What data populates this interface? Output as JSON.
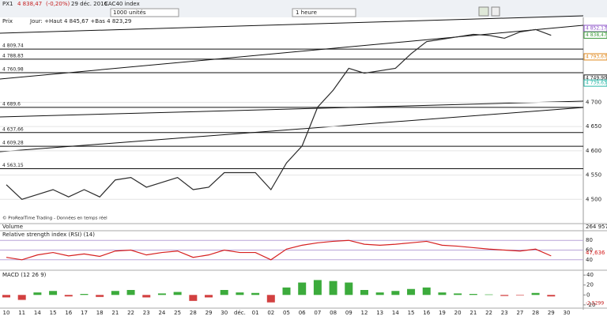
{
  "toolbar": {
    "instrument": "PX1",
    "last": "4 838,47",
    "change": "(-0,20%)",
    "date": "29 déc. 2016",
    "name": "CAC40 index",
    "units": "1000 unités",
    "period": "1 heure"
  },
  "price_panel": {
    "type": "line",
    "label": "Prix",
    "info": "Jour: +Haut 4 845,67 +Bas 4 823,29",
    "credit": "© ProRealTime Trading - Données en temps réel",
    "color": "#2b2b2b",
    "ylim": [
      4450,
      4875
    ],
    "yticks": [
      {
        "value": 4700,
        "label": "4 700"
      },
      {
        "value": 4650,
        "label": "4 650"
      },
      {
        "value": 4600,
        "label": "4 600"
      },
      {
        "value": 4550,
        "label": "4 550"
      },
      {
        "value": 4500,
        "label": "4 500"
      }
    ],
    "price_labels": [
      {
        "value": 4852.17,
        "label": "4 852,17",
        "color": "#8a4fc8"
      },
      {
        "value": 4838.47,
        "label": "4 838,47",
        "color": "#3c9a3c"
      },
      {
        "value": 4793.67,
        "label": "4 793,67",
        "color": "#e08a1e"
      },
      {
        "value": 4749.9,
        "label": "4 749,90",
        "color": "#222222"
      },
      {
        "value": 4739.63,
        "label": "4 739,63",
        "color": "#2ab8a8"
      }
    ],
    "levels": [
      {
        "value": 4809.74,
        "label": "4 809,74"
      },
      {
        "value": 4788.83,
        "label": "4 788,83"
      },
      {
        "value": 4760.98,
        "label": "4 760,98"
      },
      {
        "value": 4689.6,
        "label": "4 689,6"
      },
      {
        "value": 4637.66,
        "label": "4 637,66"
      },
      {
        "value": 4609.28,
        "label": "4 609,28"
      },
      {
        "value": 4563.15,
        "label": "4 563,15"
      }
    ],
    "values": [
      4530,
      4500,
      4510,
      4520,
      4505,
      4520,
      4505,
      4540,
      4545,
      4525,
      4535,
      4545,
      4520,
      4525,
      4555,
      4555,
      4555,
      4520,
      4575,
      4610,
      4690,
      4725,
      4770,
      4760,
      4765,
      4770,
      4800,
      4825,
      4830,
      4835,
      4840,
      4838,
      4832,
      4845,
      4850,
      4838,
      null
    ]
  },
  "volume_panel": {
    "label": "Volume",
    "last": "264 957"
  },
  "rsi_panel": {
    "label": "Relative strength index (RSI) (14)",
    "last": "47,636",
    "color": "#d62020",
    "ylim": [
      25,
      95
    ],
    "yticks": [
      40,
      60,
      80
    ],
    "values": [
      45,
      40,
      50,
      55,
      48,
      52,
      47,
      58,
      60,
      50,
      55,
      58,
      45,
      50,
      60,
      55,
      55,
      40,
      62,
      70,
      75,
      78,
      80,
      72,
      70,
      72,
      75,
      78,
      70,
      68,
      65,
      62,
      60,
      58,
      62,
      48,
      null
    ]
  },
  "macd_panel": {
    "label": "MACD (12 26 9)",
    "last": "-2,5299",
    "ylim": [
      -25,
      45
    ],
    "yticks": [
      40,
      20,
      0,
      -20
    ],
    "values": [
      -5,
      -10,
      5,
      8,
      -3,
      2,
      -4,
      8,
      10,
      -5,
      3,
      6,
      -12,
      -5,
      10,
      5,
      4,
      -15,
      15,
      25,
      30,
      28,
      25,
      10,
      5,
      8,
      12,
      15,
      5,
      3,
      2,
      1,
      -2,
      -1,
      4,
      -3,
      null
    ]
  },
  "dates": [
    "10",
    "11",
    "14",
    "15",
    "16",
    "17",
    "18",
    "21",
    "22",
    "23",
    "24",
    "25",
    "28",
    "29",
    "30",
    "déc.",
    "01",
    "02",
    "05",
    "06",
    "07",
    "08",
    "09",
    "12",
    "13",
    "14",
    "15",
    "16",
    "19",
    "20",
    "21",
    "22",
    "23",
    "27",
    "28",
    "29",
    "30"
  ]
}
